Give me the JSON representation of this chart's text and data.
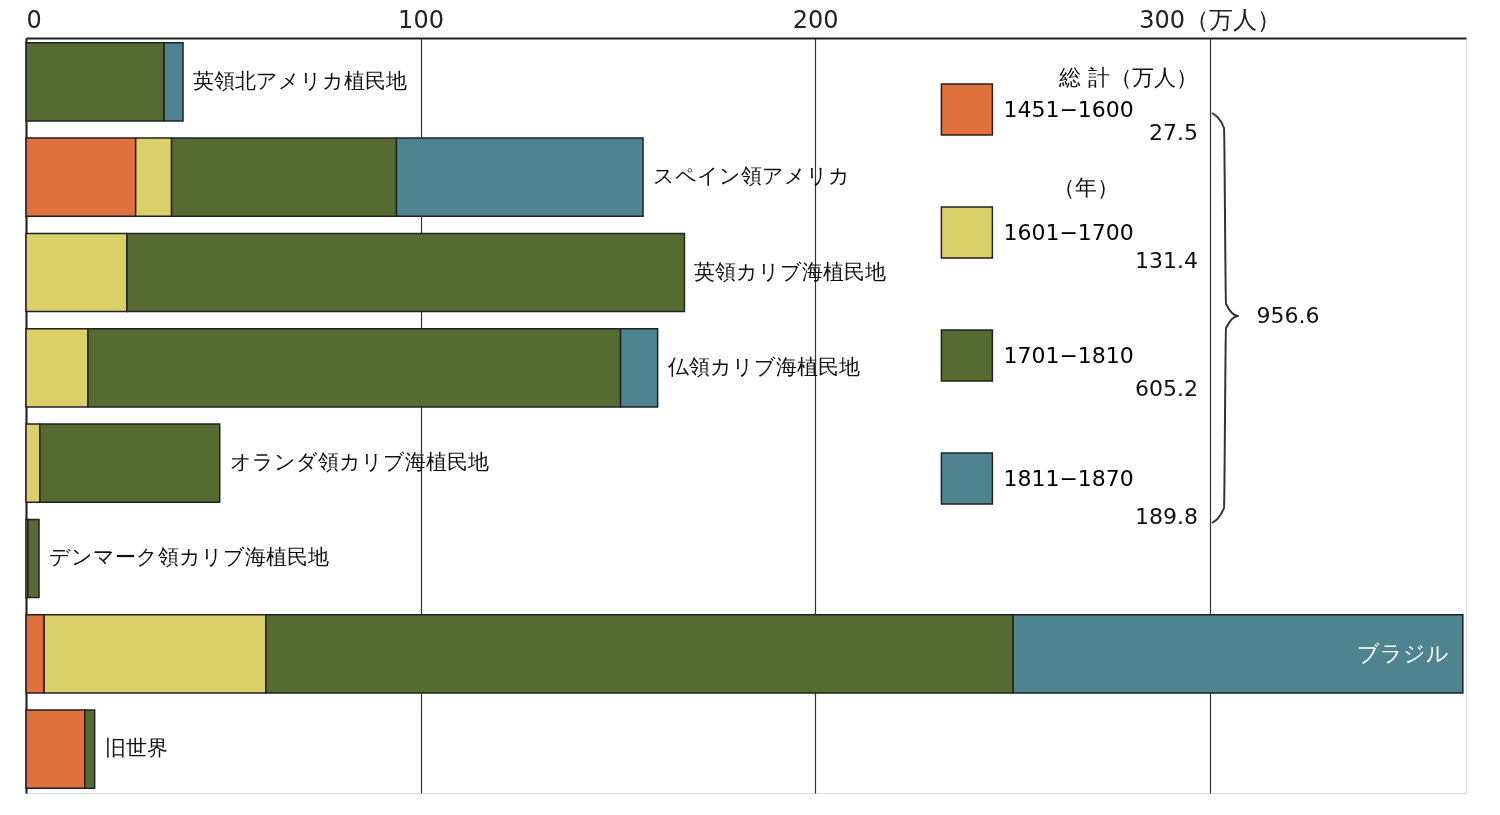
{
  "chart_data": {
    "type": "bar",
    "orientation": "horizontal",
    "stacked": true,
    "categories": [
      "英領北アメリカ植民地",
      "スペイン領アメリカ",
      "英領カリブ海植民地",
      "仏領カリブ海植民地",
      "オランダ領カリブ海植民地",
      "デンマーク領カリブ海植民地",
      "ブラジル",
      "旧世界"
    ],
    "series": [
      {
        "name": "1451−1600",
        "color": "#e0703c",
        "values": [
          null,
          27.8,
          null,
          null,
          null,
          null,
          4.6,
          14.9
        ]
      },
      {
        "name": "1601−1700",
        "color": "#d9d06a",
        "values": [
          null,
          9.1,
          25.6,
          15.7,
          3.5,
          0.5,
          56.2,
          null
        ]
      },
      {
        "name": "1701−1810",
        "color": "#566b32",
        "values": [
          35,
          57,
          141.3,
          135,
          45.6,
          2.8,
          189.4,
          2.5
        ]
      },
      {
        "name": "1811−1870",
        "color": "#4e8390",
        "values": [
          4.8,
          62.5,
          null,
          9.4,
          null,
          null,
          114,
          null
        ]
      }
    ],
    "xlim": [
      0,
      365
    ],
    "xticks": [
      0,
      100,
      200,
      {
        "value": 300,
        "label": "300（万人）"
      }
    ],
    "grid": "x",
    "tick_labels": "x",
    "legend": "top right",
    "annotations": [
      "総 計（万人）",
      "27.5",
      "131.4",
      "605.2",
      "189.8",
      "956.6",
      "（年）"
    ]
  }
}
